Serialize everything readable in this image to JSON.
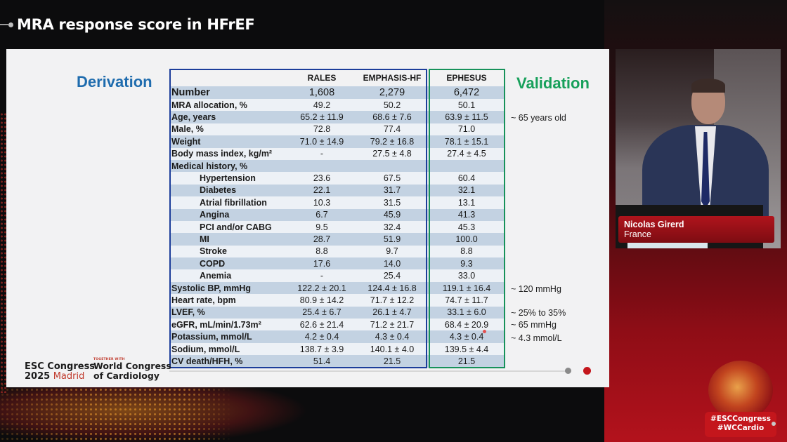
{
  "header": {
    "title": "MRA response score in HFrEF"
  },
  "slide": {
    "derivation_label": "Derivation",
    "validation_label": "Validation",
    "table": {
      "columns": [
        "",
        "RALES",
        "EMPHASIS-HF",
        "EPHESUS"
      ],
      "rows": [
        {
          "label": "Number",
          "rales": "1,608",
          "emphasis": "2,279",
          "ephesus": "6,472",
          "indent": false
        },
        {
          "label": "MRA allocation, %",
          "rales": "49.2",
          "emphasis": "50.2",
          "ephesus": "50.1",
          "indent": false
        },
        {
          "label": "Age, years",
          "rales": "65.2 ± 11.9",
          "emphasis": "68.6 ± 7.6",
          "ephesus": "63.9 ± 11.5",
          "indent": false
        },
        {
          "label": "Male, %",
          "rales": "72.8",
          "emphasis": "77.4",
          "ephesus": "71.0",
          "indent": false
        },
        {
          "label": "Weight",
          "rales": "71.0 ± 14.9",
          "emphasis": "79.2 ± 16.8",
          "ephesus": "78.1 ± 15.1",
          "indent": false
        },
        {
          "label": "Body mass index, kg/m²",
          "rales": "-",
          "emphasis": "27.5 ± 4.8",
          "ephesus": "27.4 ± 4.5",
          "indent": false
        },
        {
          "label": "Medical history, %",
          "rales": "",
          "emphasis": "",
          "ephesus": "",
          "indent": false
        },
        {
          "label": "Hypertension",
          "rales": "23.6",
          "emphasis": "67.5",
          "ephesus": "60.4",
          "indent": true
        },
        {
          "label": "Diabetes",
          "rales": "22.1",
          "emphasis": "31.7",
          "ephesus": "32.1",
          "indent": true
        },
        {
          "label": "Atrial fibrillation",
          "rales": "10.3",
          "emphasis": "31.5",
          "ephesus": "13.1",
          "indent": true
        },
        {
          "label": "Angina",
          "rales": "6.7",
          "emphasis": "45.9",
          "ephesus": "41.3",
          "indent": true
        },
        {
          "label": "PCI and/or CABG",
          "rales": "9.5",
          "emphasis": "32.4",
          "ephesus": "45.3",
          "indent": true
        },
        {
          "label": "MI",
          "rales": "28.7",
          "emphasis": "51.9",
          "ephesus": "100.0",
          "indent": true
        },
        {
          "label": "Stroke",
          "rales": "8.8",
          "emphasis": "9.7",
          "ephesus": "8.8",
          "indent": true
        },
        {
          "label": "COPD",
          "rales": "17.6",
          "emphasis": "14.0",
          "ephesus": "9.3",
          "indent": true
        },
        {
          "label": "Anemia",
          "rales": "-",
          "emphasis": "25.4",
          "ephesus": "33.0",
          "indent": true
        },
        {
          "label": "Systolic BP, mmHg",
          "rales": "122.2 ± 20.1",
          "emphasis": "124.4 ± 16.8",
          "ephesus": "119.1 ± 16.4",
          "indent": false
        },
        {
          "label": "Heart rate, bpm",
          "rales": "80.9 ± 14.2",
          "emphasis": "71.7 ± 12.2",
          "ephesus": "74.7 ± 11.7",
          "indent": false
        },
        {
          "label": "LVEF, %",
          "rales": "25.4 ± 6.7",
          "emphasis": "26.1 ± 4.7",
          "ephesus": "33.1 ± 6.0",
          "indent": false
        },
        {
          "label": "eGFR, mL/min/1.73m²",
          "rales": "62.6 ± 21.4",
          "emphasis": "71.2 ± 21.7",
          "ephesus": "68.4 ± 20.9",
          "indent": false
        },
        {
          "label": "Potassium, mmol/L",
          "rales": "4.2 ± 0.4",
          "emphasis": "4.3 ± 0.4",
          "ephesus": "4.3 ± 0.4",
          "indent": false
        },
        {
          "label": "Sodium, mmol/L",
          "rales": "138.7 ± 3.9",
          "emphasis": "140.1 ± 4.0",
          "ephesus": "139.5 ± 4.4",
          "indent": false
        },
        {
          "label": "CV death/HFH, %",
          "rales": "51.4",
          "emphasis": "21.5",
          "ephesus": "21.5",
          "indent": false
        }
      ]
    },
    "notes": {
      "age": "~ 65 years old",
      "sbp": "~ 120 mmHg",
      "lvef": "~ 25% to 35%",
      "egfr": "~ 65 mmHg",
      "potassium": "~ 4.3 mmol/L"
    },
    "logos": {
      "esc_line1": "ESC Congress",
      "esc_year": "2025",
      "esc_city": "Madrid",
      "wcc_small": "TOGETHER WITH",
      "wcc_line1": "World Congress",
      "wcc_line2": "of Cardiology"
    }
  },
  "speaker": {
    "name": "Nicolas Girerd",
    "country": "France"
  },
  "hashtags": {
    "line1": "#ESCCongress",
    "line2": "#WCCardio"
  },
  "colors": {
    "derivation_blue": "#1f6cae",
    "validation_green": "#17a05a",
    "table_border_blue": "#1c3d9a",
    "table_border_green": "#17925a",
    "row_shade": "#c3d2e2",
    "accent_red": "#c4161c"
  }
}
